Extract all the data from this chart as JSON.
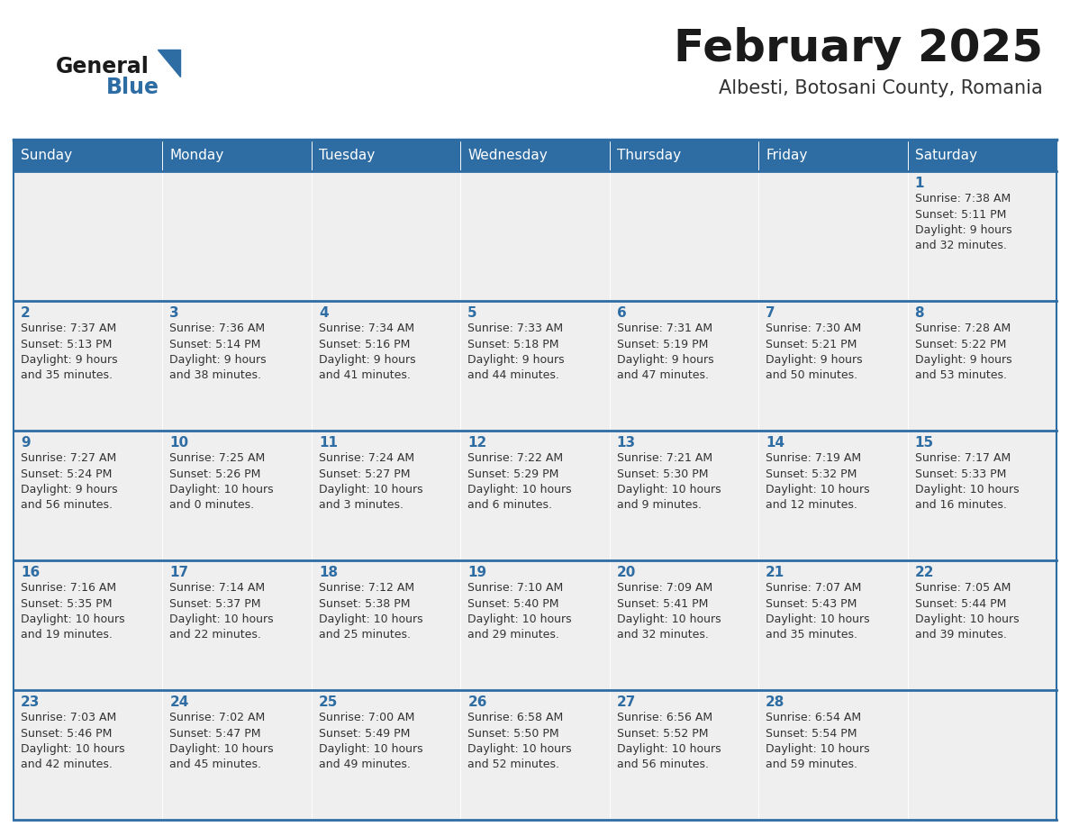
{
  "title": "February 2025",
  "subtitle": "Albesti, Botosani County, Romania",
  "header_bg": "#2E6DA4",
  "header_text": "#FFFFFF",
  "cell_bg": "#EFEFEF",
  "border_color": "#2E6DA4",
  "day_headers": [
    "Sunday",
    "Monday",
    "Tuesday",
    "Wednesday",
    "Thursday",
    "Friday",
    "Saturday"
  ],
  "title_color": "#1a1a1a",
  "subtitle_color": "#333333",
  "day_num_color": "#2E6DA4",
  "cell_text_color": "#333333",
  "logo_general_color": "#1a1a1a",
  "logo_blue_color": "#2E6DA4",
  "calendar_data": [
    [
      null,
      null,
      null,
      null,
      null,
      null,
      {
        "day": "1",
        "sunrise": "7:38 AM",
        "sunset": "5:11 PM",
        "daylight": "9 hours",
        "daylight2": "and 32 minutes."
      }
    ],
    [
      {
        "day": "2",
        "sunrise": "7:37 AM",
        "sunset": "5:13 PM",
        "daylight": "9 hours",
        "daylight2": "and 35 minutes."
      },
      {
        "day": "3",
        "sunrise": "7:36 AM",
        "sunset": "5:14 PM",
        "daylight": "9 hours",
        "daylight2": "and 38 minutes."
      },
      {
        "day": "4",
        "sunrise": "7:34 AM",
        "sunset": "5:16 PM",
        "daylight": "9 hours",
        "daylight2": "and 41 minutes."
      },
      {
        "day": "5",
        "sunrise": "7:33 AM",
        "sunset": "5:18 PM",
        "daylight": "9 hours",
        "daylight2": "and 44 minutes."
      },
      {
        "day": "6",
        "sunrise": "7:31 AM",
        "sunset": "5:19 PM",
        "daylight": "9 hours",
        "daylight2": "and 47 minutes."
      },
      {
        "day": "7",
        "sunrise": "7:30 AM",
        "sunset": "5:21 PM",
        "daylight": "9 hours",
        "daylight2": "and 50 minutes."
      },
      {
        "day": "8",
        "sunrise": "7:28 AM",
        "sunset": "5:22 PM",
        "daylight": "9 hours",
        "daylight2": "and 53 minutes."
      }
    ],
    [
      {
        "day": "9",
        "sunrise": "7:27 AM",
        "sunset": "5:24 PM",
        "daylight": "9 hours",
        "daylight2": "and 56 minutes."
      },
      {
        "day": "10",
        "sunrise": "7:25 AM",
        "sunset": "5:26 PM",
        "daylight": "10 hours",
        "daylight2": "and 0 minutes."
      },
      {
        "day": "11",
        "sunrise": "7:24 AM",
        "sunset": "5:27 PM",
        "daylight": "10 hours",
        "daylight2": "and 3 minutes."
      },
      {
        "day": "12",
        "sunrise": "7:22 AM",
        "sunset": "5:29 PM",
        "daylight": "10 hours",
        "daylight2": "and 6 minutes."
      },
      {
        "day": "13",
        "sunrise": "7:21 AM",
        "sunset": "5:30 PM",
        "daylight": "10 hours",
        "daylight2": "and 9 minutes."
      },
      {
        "day": "14",
        "sunrise": "7:19 AM",
        "sunset": "5:32 PM",
        "daylight": "10 hours",
        "daylight2": "and 12 minutes."
      },
      {
        "day": "15",
        "sunrise": "7:17 AM",
        "sunset": "5:33 PM",
        "daylight": "10 hours",
        "daylight2": "and 16 minutes."
      }
    ],
    [
      {
        "day": "16",
        "sunrise": "7:16 AM",
        "sunset": "5:35 PM",
        "daylight": "10 hours",
        "daylight2": "and 19 minutes."
      },
      {
        "day": "17",
        "sunrise": "7:14 AM",
        "sunset": "5:37 PM",
        "daylight": "10 hours",
        "daylight2": "and 22 minutes."
      },
      {
        "day": "18",
        "sunrise": "7:12 AM",
        "sunset": "5:38 PM",
        "daylight": "10 hours",
        "daylight2": "and 25 minutes."
      },
      {
        "day": "19",
        "sunrise": "7:10 AM",
        "sunset": "5:40 PM",
        "daylight": "10 hours",
        "daylight2": "and 29 minutes."
      },
      {
        "day": "20",
        "sunrise": "7:09 AM",
        "sunset": "5:41 PM",
        "daylight": "10 hours",
        "daylight2": "and 32 minutes."
      },
      {
        "day": "21",
        "sunrise": "7:07 AM",
        "sunset": "5:43 PM",
        "daylight": "10 hours",
        "daylight2": "and 35 minutes."
      },
      {
        "day": "22",
        "sunrise": "7:05 AM",
        "sunset": "5:44 PM",
        "daylight": "10 hours",
        "daylight2": "and 39 minutes."
      }
    ],
    [
      {
        "day": "23",
        "sunrise": "7:03 AM",
        "sunset": "5:46 PM",
        "daylight": "10 hours",
        "daylight2": "and 42 minutes."
      },
      {
        "day": "24",
        "sunrise": "7:02 AM",
        "sunset": "5:47 PM",
        "daylight": "10 hours",
        "daylight2": "and 45 minutes."
      },
      {
        "day": "25",
        "sunrise": "7:00 AM",
        "sunset": "5:49 PM",
        "daylight": "10 hours",
        "daylight2": "and 49 minutes."
      },
      {
        "day": "26",
        "sunrise": "6:58 AM",
        "sunset": "5:50 PM",
        "daylight": "10 hours",
        "daylight2": "and 52 minutes."
      },
      {
        "day": "27",
        "sunrise": "6:56 AM",
        "sunset": "5:52 PM",
        "daylight": "10 hours",
        "daylight2": "and 56 minutes."
      },
      {
        "day": "28",
        "sunrise": "6:54 AM",
        "sunset": "5:54 PM",
        "daylight": "10 hours",
        "daylight2": "and 59 minutes."
      },
      null
    ]
  ]
}
